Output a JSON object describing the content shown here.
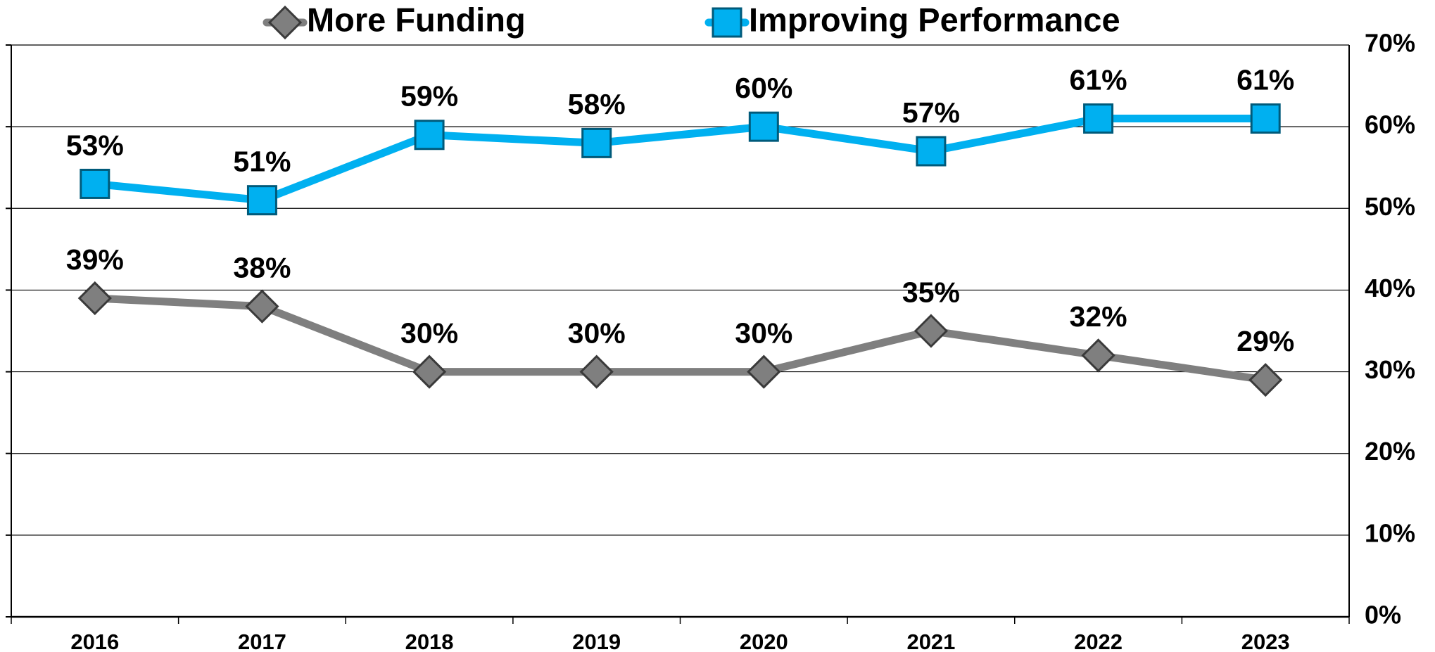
{
  "chart_data": {
    "type": "line",
    "categories": [
      "2016",
      "2017",
      "2018",
      "2019",
      "2020",
      "2021",
      "2022",
      "2023"
    ],
    "series": [
      {
        "name": "More Funding",
        "color": "#7f7f7f",
        "marker": "diamond",
        "values": [
          39,
          38,
          30,
          30,
          30,
          35,
          32,
          29
        ],
        "value_labels": [
          "39%",
          "38%",
          "30%",
          "30%",
          "30%",
          "35%",
          "32%",
          "29%"
        ]
      },
      {
        "name": "Improving Performance",
        "color": "#00b0f0",
        "marker": "square",
        "values": [
          53,
          51,
          59,
          58,
          60,
          57,
          61,
          61
        ],
        "value_labels": [
          "53%",
          "51%",
          "59%",
          "58%",
          "60%",
          "57%",
          "61%",
          "61%"
        ]
      }
    ],
    "ylim": [
      0,
      70
    ],
    "yticks": [
      {
        "value": 0,
        "label": "0%"
      },
      {
        "value": 10,
        "label": "10%"
      },
      {
        "value": 20,
        "label": "20%"
      },
      {
        "value": 30,
        "label": "30%"
      },
      {
        "value": 40,
        "label": "40%"
      },
      {
        "value": 50,
        "label": "50%"
      },
      {
        "value": 60,
        "label": "60%"
      },
      {
        "value": 70,
        "label": "70%"
      }
    ],
    "y_axis_side": "right",
    "grid": true,
    "legend": "top"
  }
}
